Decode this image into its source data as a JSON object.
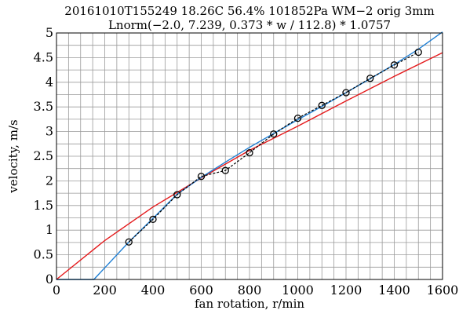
{
  "chart_data": {
    "type": "line",
    "title": "20161010T155249 18.26C 56.4% 101852Pa WM−2 orig 3mm",
    "subtitle": "Lnorm(−2.0, 7.239, 0.373 * w / 112.8) * 1.0757",
    "xlabel": "fan rotation, r/min",
    "ylabel": "velocity, m/s",
    "xlim": [
      0,
      1600
    ],
    "ylim": [
      0,
      5
    ],
    "x_ticks": [
      0,
      200,
      400,
      600,
      800,
      1000,
      1200,
      1400,
      1600
    ],
    "x_tick_labels": [
      "0",
      "200",
      "400",
      "600",
      "800",
      "1000",
      "1200",
      "1400",
      "1600"
    ],
    "y_ticks": [
      0,
      0.5,
      1,
      1.5,
      2,
      2.5,
      3,
      3.5,
      4,
      4.5,
      5
    ],
    "y_tick_labels": [
      "0",
      "0.5",
      "1",
      "1.5",
      "2",
      "2.5",
      "3",
      "3.5",
      "4",
      "4.5",
      "5"
    ],
    "grid": true,
    "series": [
      {
        "style": "markers-dashed",
        "color": "#000000",
        "x": [
          300,
          400,
          500,
          600,
          700,
          800,
          900,
          1000,
          1100,
          1200,
          1300,
          1400,
          1500
        ],
        "y": [
          0.76,
          1.22,
          1.72,
          2.09,
          2.21,
          2.57,
          2.95,
          3.27,
          3.53,
          3.79,
          4.08,
          4.35,
          4.61
        ]
      },
      {
        "style": "line",
        "color": "#e41a1c",
        "x": [
          0,
          200,
          400,
          600,
          800,
          1000,
          1200,
          1400,
          1600
        ],
        "y": [
          0.0,
          0.79,
          1.47,
          2.06,
          2.62,
          3.11,
          3.62,
          4.12,
          4.6
        ]
      },
      {
        "style": "line",
        "color": "#1f7fd4",
        "x": [
          0,
          155,
          300,
          400,
          500,
          600,
          700,
          800,
          900,
          1000,
          1100,
          1200,
          1300,
          1400,
          1500,
          1600
        ],
        "y": [
          0.0,
          0.0,
          0.76,
          1.24,
          1.73,
          2.07,
          2.38,
          2.68,
          2.96,
          3.24,
          3.51,
          3.79,
          4.07,
          4.36,
          4.67,
          5.02
        ]
      }
    ]
  }
}
